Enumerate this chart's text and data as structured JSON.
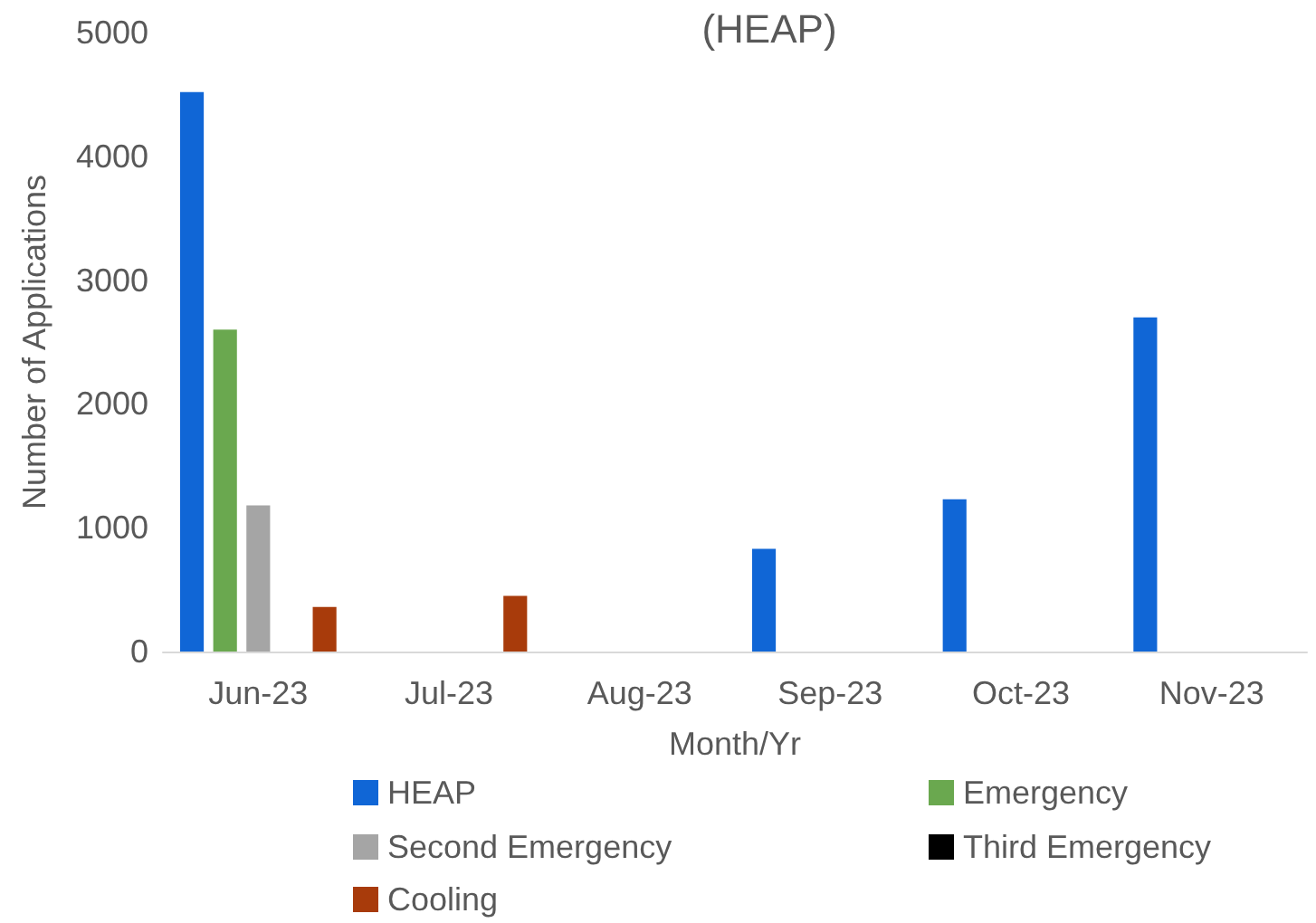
{
  "chart_data": {
    "type": "bar",
    "title": "(HEAP)",
    "xlabel": "Month/Yr",
    "ylabel": "Number of Applications",
    "categories": [
      "Jun-23",
      "Jul-23",
      "Aug-23",
      "Sep-23",
      "Oct-23",
      "Nov-23"
    ],
    "series": [
      {
        "name": "HEAP",
        "color": "#1066d6",
        "values": [
          4520,
          0,
          0,
          830,
          1230,
          2700
        ]
      },
      {
        "name": "Emergency",
        "color": "#6aa84f",
        "values": [
          2600,
          0,
          0,
          0,
          0,
          0
        ]
      },
      {
        "name": "Second Emergency",
        "color": "#a5a5a5",
        "values": [
          1180,
          0,
          0,
          0,
          0,
          0
        ]
      },
      {
        "name": "Third Emergency",
        "color": "#000000",
        "values": [
          0,
          0,
          0,
          0,
          0,
          0
        ]
      },
      {
        "name": "Cooling",
        "color": "#a83b0b",
        "values": [
          360,
          450,
          0,
          0,
          0,
          0
        ]
      }
    ],
    "ylim": [
      0,
      5000
    ],
    "yticks": [
      0,
      1000,
      2000,
      3000,
      4000,
      5000
    ],
    "grid": false,
    "legend": "bottom"
  }
}
